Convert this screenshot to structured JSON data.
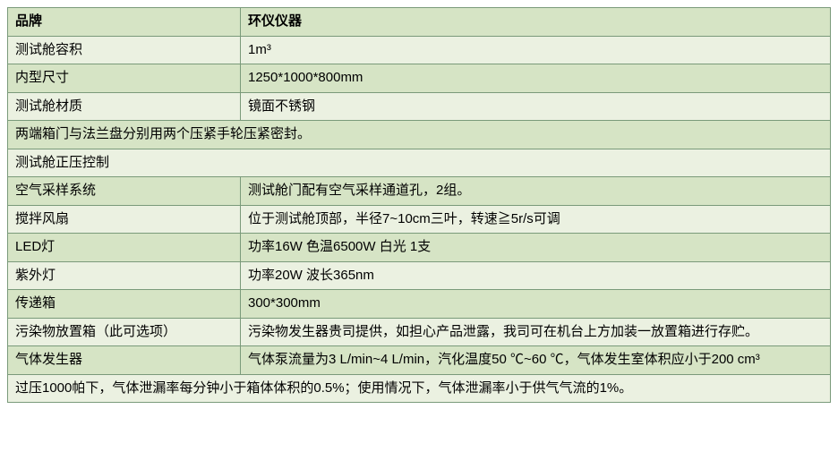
{
  "table": {
    "background_even": "#ebf1e1",
    "background_odd": "#d6e4c5",
    "border_color": "#7a9a7a",
    "text_color": "#000000",
    "font_size": 15,
    "label_col_width": 260,
    "header": {
      "label": "品牌",
      "value": "环仪仪器"
    },
    "rows": [
      {
        "type": "pair",
        "label": "测试舱容积",
        "value": "1m³"
      },
      {
        "type": "pair",
        "label": "内型尺寸",
        "value": "1250*1000*800mm"
      },
      {
        "type": "pair",
        "label": "测试舱材质",
        "value": "镜面不锈钢"
      },
      {
        "type": "full",
        "text": "两端箱门与法兰盘分别用两个压紧手轮压紧密封。"
      },
      {
        "type": "full",
        "text": "测试舱正压控制"
      },
      {
        "type": "pair",
        "label": "空气采样系统",
        "value": "测试舱门配有空气采样通道孔，2组。"
      },
      {
        "type": "pair",
        "label": "搅拌风扇",
        "value": "位于测试舱顶部，半径7~10cm三叶，转速≧5r/s可调"
      },
      {
        "type": "pair",
        "label": "LED灯",
        "value": "功率16W 色温6500W  白光  1支"
      },
      {
        "type": "pair",
        "label": "紫外灯",
        "value": "功率20W 波长365nm"
      },
      {
        "type": "pair",
        "label": "传递箱",
        "value": "300*300mm"
      },
      {
        "type": "pair",
        "label": "污染物放置箱（此可选项）",
        "value": "污染物发生器贵司提供，如担心产品泄露，我司可在机台上方加装一放置箱进行存贮。"
      },
      {
        "type": "pair",
        "label": "气体发生器",
        "value": "气体泵流量为3 L/min~4 L/min，汽化温度50 ℃~60 ℃，气体发生室体积应小于200 cm³"
      },
      {
        "type": "full",
        "text": "过压1000帕下，气体泄漏率每分钟小于箱体体积的0.5%；使用情况下，气体泄漏率小于供气气流的1%。"
      }
    ]
  }
}
